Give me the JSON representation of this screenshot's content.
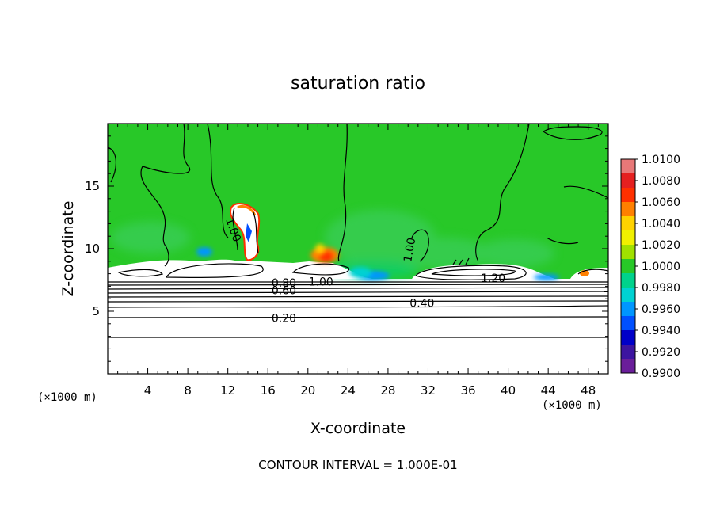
{
  "chart_data": {
    "type": "heatmap",
    "title": "saturation ratio",
    "xlabel": "X-coordinate",
    "ylabel": "Z-coordinate",
    "x_unit": "(×1000 m)",
    "y_unit": "(×1000 m)",
    "xlim": [
      0,
      50
    ],
    "ylim": [
      0,
      20
    ],
    "x_ticks": [
      4,
      8,
      12,
      16,
      20,
      24,
      28,
      32,
      36,
      40,
      44,
      48
    ],
    "y_ticks": [
      5,
      10,
      15
    ],
    "footer": "CONTOUR INTERVAL = 1.000E-01",
    "colorbar": {
      "levels": [
        "1.0100",
        "1.0080",
        "1.0060",
        "1.0040",
        "1.0020",
        "1.0000",
        "0.9980",
        "0.9960",
        "0.9940",
        "0.9920",
        "0.9900"
      ],
      "colors": [
        "#e87878",
        "#e52020",
        "#ff3000",
        "#ff8000",
        "#ffd200",
        "#f0f000",
        "#a0e000",
        "#28c828",
        "#00d28c",
        "#00d2d2",
        "#0096ff",
        "#0050ff",
        "#0000c8",
        "#3c14a0",
        "#6a1e9a"
      ]
    },
    "contour_labels": [
      {
        "text": "1.00",
        "x": 12.5,
        "z": 11.5,
        "rotate": 70
      },
      {
        "text": "1.00",
        "x": 30.2,
        "z": 9.9,
        "rotate": -80
      },
      {
        "text": "1.00",
        "x": 21.3,
        "z": 7.3,
        "rotate": 0
      },
      {
        "text": "1.20",
        "x": 38.5,
        "z": 7.6,
        "rotate": 0
      },
      {
        "text": "0.80",
        "x": 17.6,
        "z": 7.2,
        "rotate": 0
      },
      {
        "text": "0.60",
        "x": 17.6,
        "z": 6.6,
        "rotate": 0
      },
      {
        "text": "0.40",
        "x": 31.4,
        "z": 5.6,
        "rotate": 0
      },
      {
        "text": "0.20",
        "x": 17.6,
        "z": 4.4,
        "rotate": 0
      }
    ]
  }
}
